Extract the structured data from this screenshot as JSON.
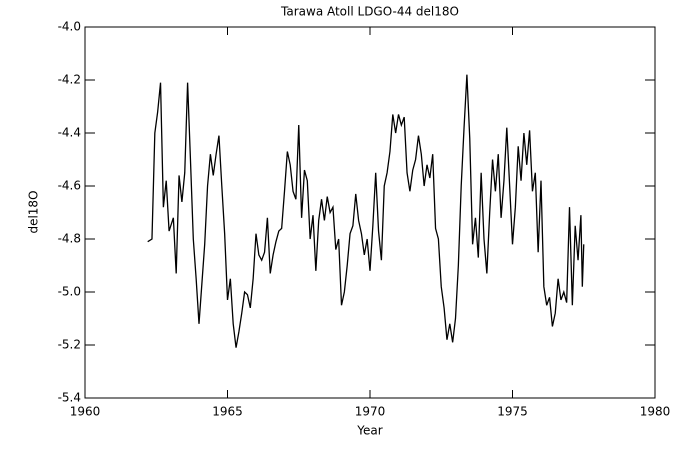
{
  "chart_data": {
    "type": "line",
    "title": "Tarawa Atoll LDGO-44 del18O",
    "x_label": "Year",
    "y_label": "del18O",
    "x": [
      1962.2,
      1962.35,
      1962.45,
      1962.55,
      1962.65,
      1962.75,
      1962.85,
      1962.95,
      1963.1,
      1963.2,
      1963.3,
      1963.4,
      1963.5,
      1963.6,
      1963.7,
      1963.8,
      1963.9,
      1964.0,
      1964.1,
      1964.2,
      1964.3,
      1964.4,
      1964.5,
      1964.6,
      1964.7,
      1964.8,
      1964.9,
      1965.0,
      1965.1,
      1965.2,
      1965.3,
      1965.4,
      1965.5,
      1965.6,
      1965.7,
      1965.8,
      1965.9,
      1966.0,
      1966.1,
      1966.2,
      1966.3,
      1966.4,
      1966.5,
      1966.6,
      1966.7,
      1966.8,
      1966.9,
      1967.0,
      1967.1,
      1967.2,
      1967.3,
      1967.4,
      1967.5,
      1967.6,
      1967.7,
      1967.8,
      1967.9,
      1968.0,
      1968.1,
      1968.2,
      1968.3,
      1968.4,
      1968.5,
      1968.6,
      1968.7,
      1968.8,
      1968.9,
      1969.0,
      1969.1,
      1969.2,
      1969.3,
      1969.4,
      1969.5,
      1969.6,
      1969.7,
      1969.8,
      1969.9,
      1970.0,
      1970.1,
      1970.2,
      1970.3,
      1970.4,
      1970.5,
      1970.6,
      1970.7,
      1970.8,
      1970.9,
      1971.0,
      1971.1,
      1971.2,
      1971.3,
      1971.4,
      1971.5,
      1971.6,
      1971.7,
      1971.8,
      1971.9,
      1972.0,
      1972.1,
      1972.2,
      1972.3,
      1972.4,
      1972.5,
      1972.6,
      1972.7,
      1972.8,
      1972.9,
      1973.0,
      1973.1,
      1973.2,
      1973.3,
      1973.4,
      1973.5,
      1973.6,
      1973.7,
      1973.8,
      1973.9,
      1974.0,
      1974.1,
      1974.2,
      1974.3,
      1974.4,
      1974.5,
      1974.6,
      1974.7,
      1974.8,
      1974.9,
      1975.0,
      1975.1,
      1975.2,
      1975.3,
      1975.4,
      1975.5,
      1975.6,
      1975.7,
      1975.8,
      1975.9,
      1976.0,
      1976.1,
      1976.2,
      1976.3,
      1976.4,
      1976.5,
      1976.6,
      1976.7,
      1976.8,
      1976.9,
      1977.0,
      1977.1,
      1977.2,
      1977.3,
      1977.4,
      1977.45,
      1977.5
    ],
    "series": [
      {
        "name": "del18O",
        "color": "#000000",
        "values": [
          -4.81,
          -4.8,
          -4.4,
          -4.32,
          -4.21,
          -4.68,
          -4.58,
          -4.77,
          -4.72,
          -4.93,
          -4.56,
          -4.66,
          -4.55,
          -4.21,
          -4.5,
          -4.8,
          -4.95,
          -5.12,
          -4.97,
          -4.82,
          -4.6,
          -4.48,
          -4.56,
          -4.48,
          -4.41,
          -4.6,
          -4.78,
          -5.03,
          -4.95,
          -5.12,
          -5.21,
          -5.15,
          -5.08,
          -5.0,
          -5.01,
          -5.06,
          -4.95,
          -4.78,
          -4.86,
          -4.88,
          -4.85,
          -4.72,
          -4.93,
          -4.86,
          -4.81,
          -4.77,
          -4.76,
          -4.62,
          -4.47,
          -4.52,
          -4.62,
          -4.65,
          -4.37,
          -4.72,
          -4.54,
          -4.58,
          -4.8,
          -4.71,
          -4.92,
          -4.73,
          -4.65,
          -4.73,
          -4.64,
          -4.7,
          -4.68,
          -4.84,
          -4.8,
          -5.05,
          -5.0,
          -4.9,
          -4.78,
          -4.75,
          -4.63,
          -4.73,
          -4.78,
          -4.86,
          -4.8,
          -4.92,
          -4.75,
          -4.55,
          -4.77,
          -4.88,
          -4.6,
          -4.55,
          -4.47,
          -4.33,
          -4.4,
          -4.33,
          -4.37,
          -4.34,
          -4.55,
          -4.62,
          -4.54,
          -4.5,
          -4.41,
          -4.48,
          -4.6,
          -4.52,
          -4.57,
          -4.48,
          -4.76,
          -4.8,
          -4.98,
          -5.06,
          -5.18,
          -5.12,
          -5.19,
          -5.1,
          -4.9,
          -4.6,
          -4.38,
          -4.18,
          -4.42,
          -4.82,
          -4.72,
          -4.87,
          -4.55,
          -4.8,
          -4.93,
          -4.7,
          -4.5,
          -4.62,
          -4.48,
          -4.72,
          -4.58,
          -4.38,
          -4.6,
          -4.82,
          -4.68,
          -4.45,
          -4.58,
          -4.4,
          -4.52,
          -4.39,
          -4.62,
          -4.55,
          -4.85,
          -4.58,
          -4.98,
          -5.05,
          -5.02,
          -5.13,
          -5.08,
          -4.95,
          -5.03,
          -5.0,
          -5.04,
          -4.68,
          -5.05,
          -4.75,
          -4.88,
          -4.71,
          -4.98,
          -4.82
        ]
      }
    ],
    "xlim": [
      1960,
      1980
    ],
    "xticks": [
      1960,
      1965,
      1970,
      1975,
      1980
    ],
    "ylim": [
      -5.4,
      -4.0
    ],
    "yticks": [
      {
        "value": -5.4,
        "label": "-5.4"
      },
      {
        "value": -5.2,
        "label": "-5.2"
      },
      {
        "value": -5.0,
        "label": "-5.0"
      },
      {
        "value": -4.8,
        "label": "-4.8"
      },
      {
        "value": -4.6,
        "label": "-4.6"
      },
      {
        "value": -4.4,
        "label": "-4.4"
      },
      {
        "value": -4.2,
        "label": "-4.2"
      },
      {
        "value": -4.0,
        "label": "-4.0"
      }
    ]
  }
}
